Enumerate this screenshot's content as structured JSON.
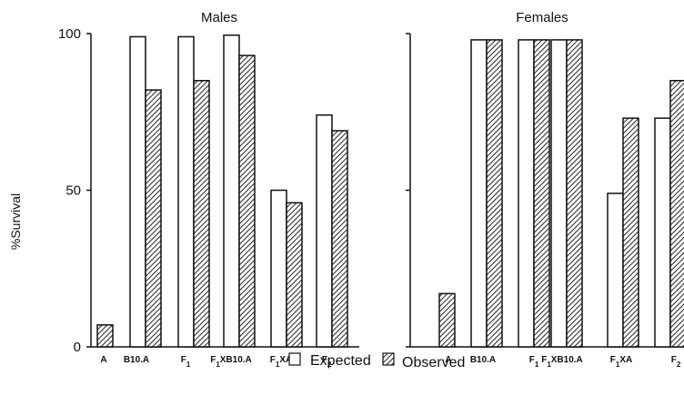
{
  "chart_data": [
    {
      "type": "bar",
      "title": "Males",
      "ylabel": "%Survival",
      "ylim": [
        0,
        100
      ],
      "yticks": [
        "0",
        "50",
        "100"
      ],
      "categories": [
        "A",
        "B10.A",
        "F1",
        "F1XB10.A",
        "F1XA",
        "F2"
      ],
      "series": [
        {
          "name": "Expected",
          "values": [
            null,
            99,
            99,
            99.5,
            50,
            74
          ]
        },
        {
          "name": "Observed",
          "values": [
            7,
            82,
            85,
            93,
            46,
            69
          ]
        }
      ]
    },
    {
      "type": "bar",
      "title": "Females",
      "ylabel": "",
      "ylim": [
        0,
        100
      ],
      "yticks": [],
      "categories": [
        "A",
        "B10.A",
        "F1",
        "F1XB10.A",
        "F1XA",
        "F2"
      ],
      "series": [
        {
          "name": "Expected",
          "values": [
            null,
            98,
            98,
            98,
            49,
            73
          ]
        },
        {
          "name": "Observed",
          "values": [
            17,
            98,
            98,
            98,
            73,
            85
          ]
        }
      ]
    }
  ],
  "legend": {
    "expected_label": "Expected",
    "observed_label": "Observed"
  },
  "colors": {
    "expected_fill": "#ffffff",
    "observed_hatch": "#222222",
    "stroke": "#111111"
  }
}
